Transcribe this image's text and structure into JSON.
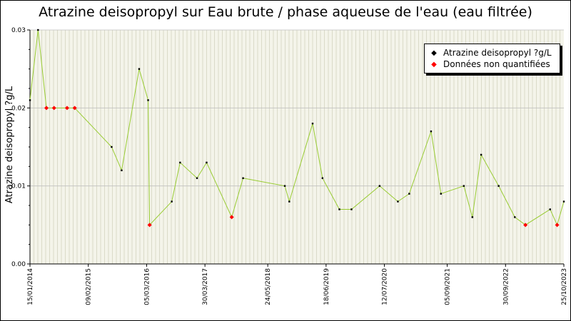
{
  "chart_data": {
    "type": "line",
    "title": "Atrazine deisopropyl sur Eau brute / phase aqueuse de l'eau (eau filtrée)",
    "ylabel": "Atrazine deisopropyl ?g/L",
    "xlabel": "",
    "ylim": [
      0,
      0.03
    ],
    "xlim": [
      "2014-01-15",
      "2023-10-25"
    ],
    "y_ticks": [
      "0.00",
      "0.01",
      "0.02",
      "0.03"
    ],
    "y_tick_values": [
      0,
      0.01,
      0.02,
      0.03
    ],
    "x_ticks": [
      "15/01/2014",
      "09/02/2015",
      "05/03/2016",
      "30/03/2017",
      "24/05/2018",
      "18/06/2019",
      "12/07/2020",
      "05/09/2021",
      "30/09/2022",
      "25/10/2023"
    ],
    "x_tick_dates": [
      "2014-01-15",
      "2015-02-09",
      "2016-03-05",
      "2017-03-30",
      "2018-05-24",
      "2019-06-18",
      "2020-07-12",
      "2021-09-05",
      "2022-09-30",
      "2023-10-25"
    ],
    "grid": true,
    "legend_position": "top-right",
    "series": [
      {
        "name": "Atrazine deisopropyl ?g/L",
        "color": "#99cc33",
        "marker_color": "#000000",
        "points": [
          [
            "2014-01-15",
            0.021
          ],
          [
            "2014-03-10",
            0.03
          ],
          [
            "2014-05-05",
            0.02
          ],
          [
            "2014-06-25",
            0.02
          ],
          [
            "2014-09-20",
            0.02
          ],
          [
            "2014-11-10",
            0.02
          ],
          [
            "2015-07-15",
            0.015
          ],
          [
            "2015-09-20",
            0.012
          ],
          [
            "2016-01-15",
            0.025
          ],
          [
            "2016-03-15",
            0.021
          ],
          [
            "2016-03-25",
            0.005
          ],
          [
            "2016-08-20",
            0.008
          ],
          [
            "2016-10-15",
            0.013
          ],
          [
            "2017-02-05",
            0.011
          ],
          [
            "2017-04-10",
            0.013
          ],
          [
            "2017-09-25",
            0.006
          ],
          [
            "2017-12-10",
            0.011
          ],
          [
            "2018-09-15",
            0.01
          ],
          [
            "2018-10-15",
            0.008
          ],
          [
            "2019-03-20",
            0.018
          ],
          [
            "2019-05-25",
            0.011
          ],
          [
            "2019-09-15",
            0.007
          ],
          [
            "2019-12-05",
            0.007
          ],
          [
            "2020-06-10",
            0.01
          ],
          [
            "2020-10-10",
            0.008
          ],
          [
            "2020-12-25",
            0.009
          ],
          [
            "2021-05-20",
            0.017
          ],
          [
            "2021-07-25",
            0.009
          ],
          [
            "2021-12-25",
            0.01
          ],
          [
            "2022-02-20",
            0.006
          ],
          [
            "2022-04-20",
            0.014
          ],
          [
            "2022-08-15",
            0.01
          ],
          [
            "2022-12-01",
            0.006
          ],
          [
            "2023-02-10",
            0.005
          ],
          [
            "2023-07-25",
            0.007
          ],
          [
            "2023-09-10",
            0.005
          ],
          [
            "2023-10-25",
            0.008
          ]
        ]
      },
      {
        "name": "Données non quantifiées",
        "color": "#ff0000",
        "marker_color": "#ff0000",
        "points": [
          [
            "2014-05-05",
            0.02
          ],
          [
            "2014-06-25",
            0.02
          ],
          [
            "2014-09-20",
            0.02
          ],
          [
            "2014-11-10",
            0.02
          ],
          [
            "2016-03-25",
            0.005
          ],
          [
            "2017-09-25",
            0.006
          ],
          [
            "2023-02-10",
            0.005
          ],
          [
            "2023-09-10",
            0.005
          ]
        ]
      }
    ]
  }
}
